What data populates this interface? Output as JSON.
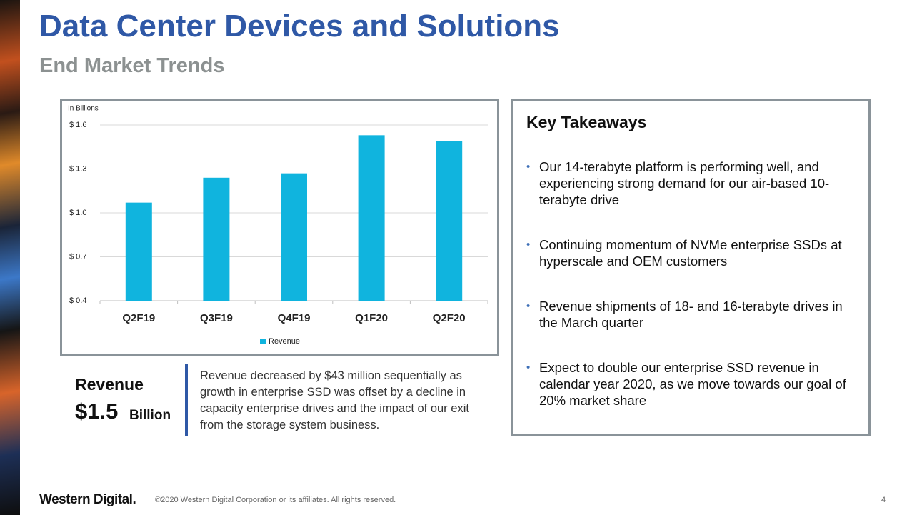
{
  "header": {
    "title": "Data Center Devices and Solutions",
    "subtitle": "End Market Trends"
  },
  "chart_data": {
    "type": "bar",
    "y_label": "In Billions",
    "categories": [
      "Q2F19",
      "Q3F19",
      "Q4F19",
      "Q1F20",
      "Q2F20"
    ],
    "series": [
      {
        "name": "Revenue",
        "color": "#10b4de",
        "values": [
          1.07,
          1.24,
          1.27,
          1.53,
          1.49
        ]
      }
    ],
    "ylim": [
      0.4,
      1.6
    ],
    "yticks": [
      {
        "value": 0.4,
        "label": "$ 0.4"
      },
      {
        "value": 0.7,
        "label": "$ 0.7"
      },
      {
        "value": 1.0,
        "label": "$ 1.0"
      },
      {
        "value": 1.3,
        "label": "$ 1.3"
      },
      {
        "value": 1.6,
        "label": "$ 1.6"
      }
    ],
    "grid": true,
    "legend": "bottom"
  },
  "revenue": {
    "label": "Revenue",
    "amount": "$1.5",
    "unit": "Billion",
    "description": "Revenue decreased by $43 million sequentially as growth in enterprise SSD was offset by a decline in capacity enterprise drives and the impact of our exit from the storage system business."
  },
  "takeaways": {
    "title": "Key Takeaways",
    "items": [
      "Our 14-terabyte platform is performing well, and experiencing strong demand for our air-based 10-terabyte drive",
      "Continuing momentum of NVMe enterprise SSDs at hyperscale and OEM customers",
      "Revenue shipments of 18- and 16-terabyte drives in the March quarter",
      "Expect to double our enterprise SSD revenue in calendar year 2020, as we move towards our goal of 20% market share"
    ]
  },
  "footer": {
    "logo": "Western Digital.",
    "copyright": "©2020 Western Digital Corporation or its affiliates. All rights reserved.",
    "page": 4
  }
}
